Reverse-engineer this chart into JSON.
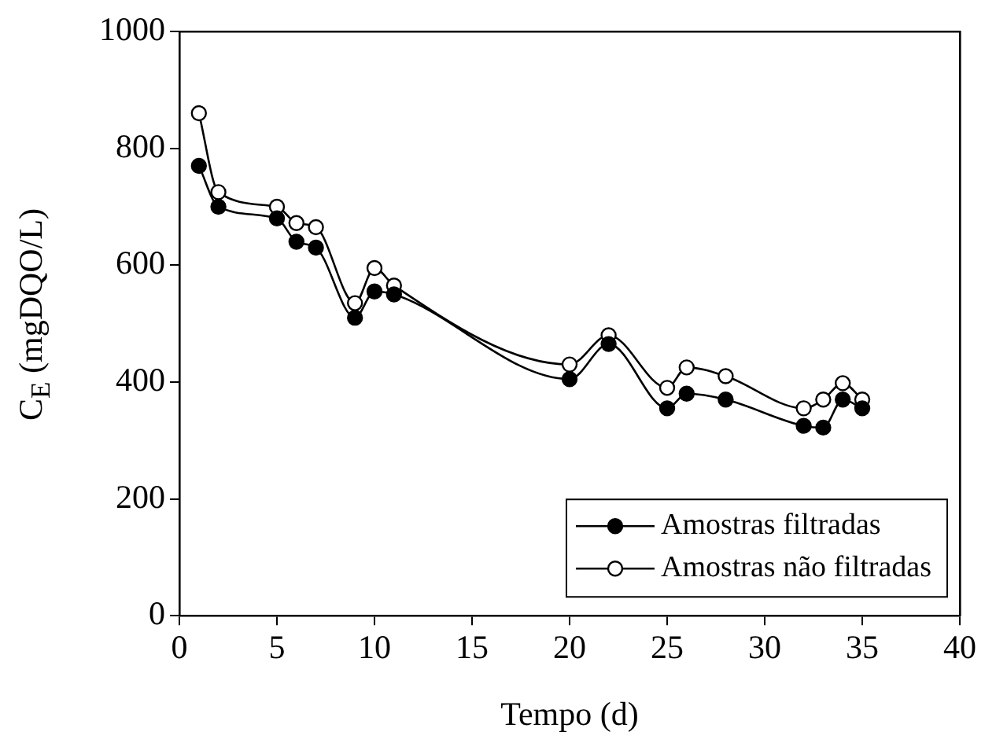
{
  "chart_data": {
    "type": "line",
    "xlabel": "Tempo (d)",
    "ylabel": "C$_{E}$ (mgDQO/L)",
    "x": [
      1,
      2,
      5,
      6,
      7,
      9,
      10,
      11,
      20,
      22,
      25,
      26,
      28,
      32,
      33,
      34,
      35
    ],
    "series": [
      {
        "name": "Amostras filtradas",
        "color": "#000000",
        "values": [
          770,
          700,
          680,
          640,
          630,
          510,
          555,
          550,
          405,
          465,
          355,
          380,
          370,
          325,
          322,
          370,
          355
        ]
      },
      {
        "name": "Amostras não filtradas",
        "color": "#000000",
        "values": [
          860,
          725,
          700,
          672,
          665,
          535,
          595,
          565,
          430,
          480,
          390,
          425,
          410,
          355,
          370,
          398,
          370
        ]
      }
    ],
    "xlim": [
      0,
      40
    ],
    "xticks": [
      0,
      5,
      10,
      15,
      20,
      25,
      30,
      35,
      40
    ],
    "ylim": [
      0,
      1000
    ],
    "yticks": [
      0,
      200,
      400,
      600,
      800,
      1000
    ],
    "grid": false,
    "legend": "bottom right",
    "marker": "circle"
  }
}
